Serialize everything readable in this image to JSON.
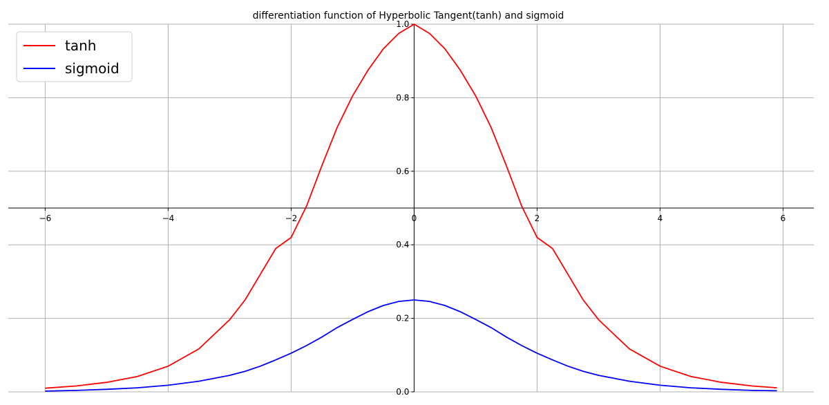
{
  "chart_data": {
    "type": "line",
    "title": "differentiation function of Hyperbolic Tangent(tanh) and sigmoid",
    "xlabel": "",
    "ylabel": "",
    "xlim": [
      -6.6,
      6.5
    ],
    "ylim": [
      0.0,
      1.0
    ],
    "x_ticks": [
      -6,
      -4,
      -2,
      0,
      2,
      4,
      6
    ],
    "x_tick_labels": [
      "−6",
      "−4",
      "−2",
      "0",
      "2",
      "4",
      "6"
    ],
    "y_ticks": [
      0.0,
      0.2,
      0.4,
      0.6,
      0.8,
      1.0
    ],
    "y_tick_labels": [
      "0.0",
      "0.2",
      "0.4",
      "0.6",
      "0.8",
      "1.0"
    ],
    "x_axis_at_y": 0.5,
    "y_axis_at_x": 0,
    "grid": true,
    "legend_position": "top-left",
    "series": [
      {
        "name": "tanh",
        "color": "#ff0000",
        "x": [
          -6.0,
          -5.5,
          -5.0,
          -4.5,
          -4.0,
          -3.5,
          -3.0,
          -2.75,
          -2.5,
          -2.25,
          -2.0,
          -1.75,
          -1.5,
          -1.25,
          -1.0,
          -0.75,
          -0.5,
          -0.25,
          0.0,
          0.25,
          0.5,
          0.75,
          1.0,
          1.25,
          1.5,
          1.75,
          2.0,
          2.25,
          2.5,
          2.75,
          3.0,
          3.5,
          4.0,
          4.5,
          5.0,
          5.5,
          5.9
        ],
        "y": [
          0.01,
          0.016,
          0.026,
          0.042,
          0.07,
          0.117,
          0.196,
          0.25,
          0.32,
          0.39,
          0.42,
          0.505,
          0.615,
          0.72,
          0.805,
          0.875,
          0.933,
          0.975,
          1.0,
          0.975,
          0.933,
          0.875,
          0.805,
          0.72,
          0.615,
          0.505,
          0.42,
          0.39,
          0.32,
          0.25,
          0.196,
          0.117,
          0.07,
          0.042,
          0.026,
          0.016,
          0.011
        ]
      },
      {
        "name": "sigmoid",
        "color": "#0000ff",
        "x": [
          -6.0,
          -5.5,
          -5.0,
          -4.5,
          -4.0,
          -3.5,
          -3.0,
          -2.75,
          -2.5,
          -2.25,
          -2.0,
          -1.75,
          -1.5,
          -1.25,
          -1.0,
          -0.75,
          -0.5,
          -0.25,
          0.0,
          0.25,
          0.5,
          0.75,
          1.0,
          1.25,
          1.5,
          1.75,
          2.0,
          2.25,
          2.5,
          2.75,
          3.0,
          3.5,
          4.0,
          4.5,
          5.0,
          5.5,
          5.9
        ],
        "y": [
          0.002,
          0.004,
          0.007,
          0.011,
          0.018,
          0.029,
          0.045,
          0.056,
          0.07,
          0.087,
          0.105,
          0.126,
          0.149,
          0.175,
          0.197,
          0.218,
          0.235,
          0.246,
          0.25,
          0.246,
          0.235,
          0.218,
          0.197,
          0.175,
          0.149,
          0.126,
          0.105,
          0.087,
          0.07,
          0.056,
          0.045,
          0.029,
          0.018,
          0.011,
          0.007,
          0.004,
          0.003
        ]
      }
    ]
  }
}
